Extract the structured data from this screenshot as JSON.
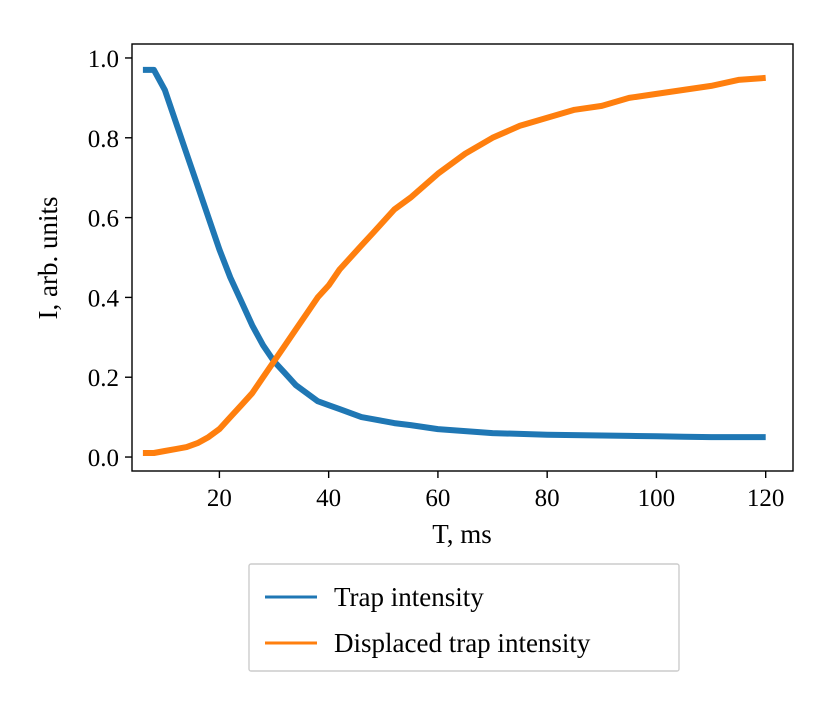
{
  "chart_data": {
    "type": "line",
    "title": "",
    "xlabel": "T, ms",
    "ylabel": "I, arb. units",
    "xlim": [
      4,
      125
    ],
    "ylim": [
      -0.035,
      1.035
    ],
    "xticks": [
      20,
      40,
      60,
      80,
      100,
      120
    ],
    "xtick_labels": [
      "20",
      "40",
      "60",
      "80",
      "100",
      "120"
    ],
    "yticks": [
      0.0,
      0.2,
      0.4,
      0.6,
      0.8,
      1.0
    ],
    "ytick_labels": [
      "0.0",
      "0.2",
      "0.4",
      "0.6",
      "0.8",
      "1.0"
    ],
    "grid": false,
    "legend_position": "bottom, below plot",
    "series": [
      {
        "name": "Trap intensity",
        "color": "#1f77b4",
        "x": [
          6,
          8,
          10,
          12,
          14,
          16,
          18,
          20,
          22,
          24,
          26,
          28,
          30,
          32,
          34,
          36,
          38,
          40,
          42,
          44,
          46,
          48,
          50,
          52,
          55,
          60,
          65,
          70,
          75,
          80,
          85,
          90,
          95,
          100,
          105,
          110,
          115,
          120
        ],
        "y": [
          0.97,
          0.97,
          0.92,
          0.84,
          0.76,
          0.68,
          0.6,
          0.52,
          0.45,
          0.39,
          0.33,
          0.28,
          0.24,
          0.21,
          0.18,
          0.16,
          0.14,
          0.13,
          0.12,
          0.11,
          0.1,
          0.095,
          0.09,
          0.085,
          0.08,
          0.07,
          0.065,
          0.06,
          0.058,
          0.056,
          0.055,
          0.054,
          0.053,
          0.052,
          0.051,
          0.05,
          0.05,
          0.05
        ]
      },
      {
        "name": "Displaced trap intensity",
        "color": "#ff7f0e",
        "x": [
          6,
          8,
          10,
          12,
          14,
          16,
          18,
          20,
          22,
          24,
          26,
          28,
          30,
          32,
          34,
          36,
          38,
          40,
          42,
          44,
          46,
          48,
          50,
          52,
          55,
          60,
          65,
          70,
          75,
          80,
          85,
          90,
          95,
          100,
          105,
          110,
          115,
          120
        ],
        "y": [
          0.01,
          0.01,
          0.015,
          0.02,
          0.025,
          0.035,
          0.05,
          0.07,
          0.1,
          0.13,
          0.16,
          0.2,
          0.24,
          0.28,
          0.32,
          0.36,
          0.4,
          0.43,
          0.47,
          0.5,
          0.53,
          0.56,
          0.59,
          0.62,
          0.65,
          0.71,
          0.76,
          0.8,
          0.83,
          0.85,
          0.87,
          0.88,
          0.9,
          0.91,
          0.92,
          0.93,
          0.945,
          0.95
        ]
      }
    ]
  }
}
